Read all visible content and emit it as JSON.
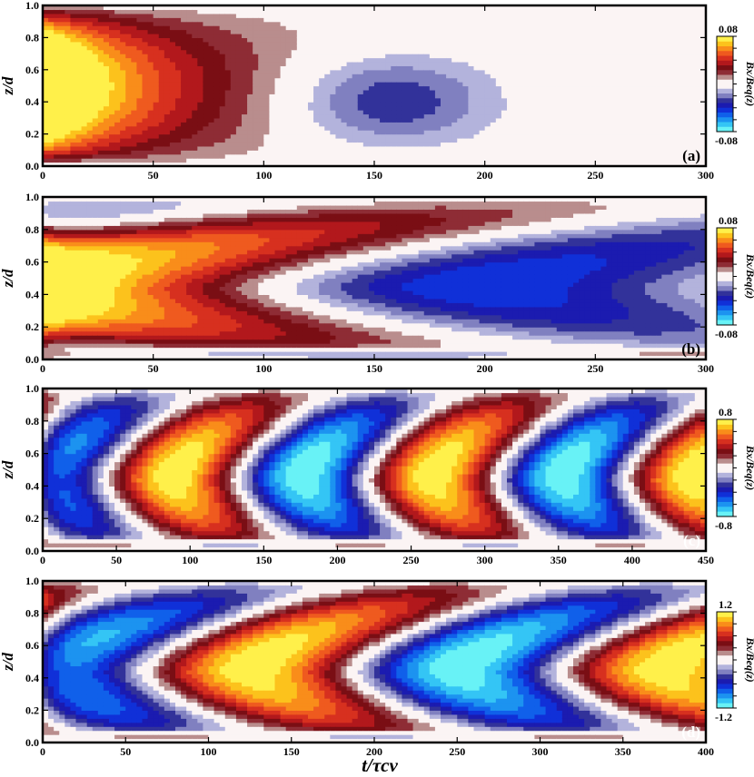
{
  "chart_data": [
    {
      "type": "heatmap",
      "panel_label": "(a)",
      "ylabel": "z/d",
      "xlim": [
        0,
        300
      ],
      "ylim": [
        0,
        1
      ],
      "xticks": [
        "0",
        "50",
        "100",
        "150",
        "200",
        "250",
        "300"
      ],
      "yticks": [
        "0.0",
        "0.2",
        "0.4",
        "0.6",
        "0.8",
        "1.0"
      ],
      "colorbar": {
        "title": "Bx/Beq(z)",
        "max": "0.08",
        "min": "-0.08"
      },
      "amplitude": 0.08,
      "pattern": {
        "kind": "decay",
        "front0": 0.12,
        "speed": 0.00255,
        "width": 0.55,
        "decay": 0.006,
        "peak": 1.6
      }
    },
    {
      "type": "heatmap",
      "panel_label": "(b)",
      "ylabel": "z/d",
      "xlim": [
        0,
        300
      ],
      "ylim": [
        0,
        1
      ],
      "xticks": [
        "0",
        "50",
        "100",
        "150",
        "200",
        "250",
        "300"
      ],
      "yticks": [
        "0.0",
        "0.2",
        "0.4",
        "0.6",
        "0.8",
        "1.0"
      ],
      "colorbar": {
        "title": "Bx/Beq(z)",
        "max": "0.08",
        "min": "-0.08"
      },
      "amplitude": 0.08,
      "pattern": {
        "kind": "wave",
        "period": 420,
        "phase": 0.25,
        "bend": 0.55,
        "decay": 0.0025,
        "peak": 1.0
      }
    },
    {
      "type": "heatmap",
      "panel_label": "(c)",
      "ylabel": "z/d",
      "xlim": [
        0,
        450
      ],
      "ylim": [
        0,
        1
      ],
      "xticks": [
        "0",
        "50",
        "100",
        "150",
        "200",
        "250",
        "300",
        "350",
        "400",
        "450"
      ],
      "yticks": [
        "0.0",
        "0.2",
        "0.4",
        "0.6",
        "0.8",
        "1.0"
      ],
      "colorbar": {
        "title": "Bx/Beq(z)",
        "max": "0.8",
        "min": "-0.8"
      },
      "amplitude": 0.8,
      "pattern": {
        "kind": "wave",
        "period": 176,
        "phase": 0.75,
        "bend": 0.38,
        "decay": 0,
        "peak": 1.0
      }
    },
    {
      "type": "heatmap",
      "panel_label": "(d)",
      "ylabel": "z/d",
      "xlabel": "t/τcv",
      "xlim": [
        0,
        400
      ],
      "ylim": [
        0,
        1
      ],
      "xticks": [
        "0",
        "50",
        "100",
        "150",
        "200",
        "250",
        "300",
        "350",
        "400"
      ],
      "yticks": [
        "0.0",
        "0.2",
        "0.4",
        "0.6",
        "0.8",
        "1.0"
      ],
      "colorbar": {
        "title": "Bx/Beq(z)",
        "max": "1.2",
        "min": "-1.2"
      },
      "amplitude": 1.2,
      "pattern": {
        "kind": "wave",
        "period": 250,
        "phase": 0.75,
        "bend": 0.5,
        "decay": 0,
        "peak": 1.0
      }
    }
  ],
  "colors": {
    "positive": [
      "#fbf4f4",
      "#b98d8d",
      "#8e2c35",
      "#7a0e14",
      "#b2181c",
      "#d7301f",
      "#ef5a1f",
      "#f98d1a",
      "#fcc21c",
      "#fff04a"
    ],
    "negative": [
      "#fbf4f4",
      "#b3b3dc",
      "#8080c0",
      "#32329a",
      "#1b1bb0",
      "#1030d8",
      "#1060ea",
      "#1c93f0",
      "#34c5f5",
      "#68f2f6"
    ]
  }
}
